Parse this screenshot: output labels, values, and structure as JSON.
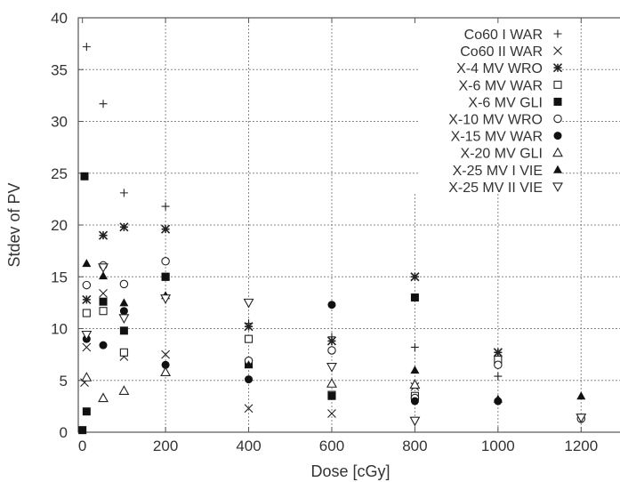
{
  "chart_data": {
    "type": "scatter",
    "xlabel": "Dose [cGy]",
    "ylabel": "Stdev of PV",
    "xlim": [
      -10,
      1300
    ],
    "ylim": [
      0,
      40
    ],
    "xticks": [
      0,
      200,
      400,
      600,
      800,
      1000,
      1200
    ],
    "yticks": [
      0,
      5,
      10,
      15,
      20,
      25,
      30,
      35,
      40
    ],
    "grid": true,
    "legend_position": "top-right",
    "series": [
      {
        "name": "Co60 I WAR",
        "marker": "plus",
        "points": [
          [
            10,
            37.2
          ],
          [
            50,
            31.7
          ],
          [
            100,
            23.1
          ],
          [
            200,
            21.8
          ],
          [
            400,
            10.5
          ],
          [
            600,
            9.2
          ],
          [
            800,
            8.2
          ],
          [
            1000,
            5.4
          ]
        ]
      },
      {
        "name": "Co60 II WAR",
        "marker": "x",
        "points": [
          [
            5,
            4.8
          ],
          [
            10,
            8.2
          ],
          [
            50,
            13.4
          ],
          [
            100,
            7.3
          ],
          [
            200,
            7.5
          ],
          [
            400,
            2.3
          ],
          [
            600,
            1.8
          ],
          [
            800,
            4.4
          ],
          [
            1000,
            7.7
          ]
        ]
      },
      {
        "name": "X-4 MV WRO",
        "marker": "star",
        "points": [
          [
            10,
            12.8
          ],
          [
            50,
            19.0
          ],
          [
            100,
            19.8
          ],
          [
            200,
            19.6
          ],
          [
            400,
            10.2
          ],
          [
            600,
            8.8
          ],
          [
            800,
            15.0
          ],
          [
            1000,
            7.7
          ]
        ]
      },
      {
        "name": "X-6 MV WAR",
        "marker": "open-square",
        "points": [
          [
            10,
            11.5
          ],
          [
            50,
            11.7
          ],
          [
            100,
            7.7
          ],
          [
            200,
            15.0
          ],
          [
            400,
            9.0
          ],
          [
            600,
            3.6
          ],
          [
            800,
            3.5
          ],
          [
            1000,
            7.0
          ]
        ]
      },
      {
        "name": "X-6 MV GLI",
        "marker": "filled-square",
        "points": [
          [
            0,
            0.2
          ],
          [
            5,
            24.7
          ],
          [
            10,
            2.0
          ],
          [
            50,
            12.6
          ],
          [
            100,
            9.8
          ],
          [
            200,
            15.0
          ],
          [
            400,
            6.6
          ],
          [
            600,
            3.5
          ],
          [
            800,
            13.0
          ]
        ]
      },
      {
        "name": "X-10 MV WRO",
        "marker": "open-circle",
        "points": [
          [
            10,
            14.2
          ],
          [
            50,
            16.1
          ],
          [
            100,
            14.3
          ],
          [
            200,
            16.5
          ],
          [
            400,
            6.9
          ],
          [
            600,
            7.9
          ],
          [
            800,
            3.3
          ],
          [
            1000,
            6.5
          ],
          [
            1200,
            1.3
          ]
        ]
      },
      {
        "name": "X-15 MV WAR",
        "marker": "filled-circle",
        "points": [
          [
            10,
            9.0
          ],
          [
            50,
            8.4
          ],
          [
            100,
            11.7
          ],
          [
            200,
            6.5
          ],
          [
            400,
            5.1
          ],
          [
            600,
            12.3
          ],
          [
            800,
            3.0
          ],
          [
            1000,
            3.0
          ]
        ]
      },
      {
        "name": "X-20 MV GLI",
        "marker": "open-triangle",
        "points": [
          [
            10,
            5.3
          ],
          [
            50,
            3.3
          ],
          [
            100,
            4.0
          ],
          [
            200,
            5.8
          ],
          [
            600,
            4.7
          ],
          [
            800,
            4.6
          ]
        ]
      },
      {
        "name": "X-25 MV I VIE",
        "marker": "filled-triangle",
        "points": [
          [
            10,
            16.3
          ],
          [
            50,
            15.1
          ],
          [
            100,
            12.5
          ],
          [
            200,
            13.2
          ],
          [
            400,
            6.5
          ],
          [
            800,
            6.0
          ],
          [
            1000,
            3.2
          ],
          [
            1200,
            3.5
          ]
        ]
      },
      {
        "name": "X-25 MV II VIE",
        "marker": "open-triangle-down",
        "points": [
          [
            10,
            9.4
          ],
          [
            50,
            15.9
          ],
          [
            100,
            11.0
          ],
          [
            200,
            12.9
          ],
          [
            400,
            12.5
          ],
          [
            600,
            6.3
          ],
          [
            800,
            1.1
          ],
          [
            1200,
            1.4
          ]
        ]
      }
    ]
  }
}
